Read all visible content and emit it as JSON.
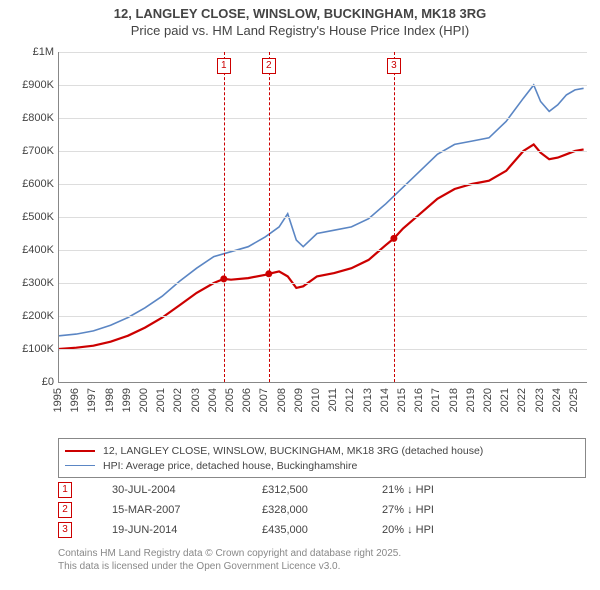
{
  "title": {
    "line1": "12, LANGLEY CLOSE, WINSLOW, BUCKINGHAM, MK18 3RG",
    "line2": "Price paid vs. HM Land Registry's House Price Index (HPI)"
  },
  "chart": {
    "type": "line",
    "background_color": "#ffffff",
    "grid_color": "#dddddd",
    "axis_color": "#888888",
    "label_color": "#444444",
    "label_fontsize": 11,
    "title_fontsize": 13,
    "x": {
      "min": 1995,
      "max": 2025.7,
      "ticks": [
        1995,
        1996,
        1997,
        1998,
        1999,
        2000,
        2001,
        2002,
        2003,
        2004,
        2005,
        2006,
        2007,
        2008,
        2009,
        2010,
        2011,
        2012,
        2013,
        2014,
        2015,
        2016,
        2017,
        2018,
        2019,
        2020,
        2021,
        2022,
        2023,
        2024,
        2025
      ]
    },
    "y": {
      "min": 0,
      "max": 1000000,
      "ticks": [
        {
          "v": 0,
          "label": "£0"
        },
        {
          "v": 100000,
          "label": "£100K"
        },
        {
          "v": 200000,
          "label": "£200K"
        },
        {
          "v": 300000,
          "label": "£300K"
        },
        {
          "v": 400000,
          "label": "£400K"
        },
        {
          "v": 500000,
          "label": "£500K"
        },
        {
          "v": 600000,
          "label": "£600K"
        },
        {
          "v": 700000,
          "label": "£700K"
        },
        {
          "v": 800000,
          "label": "£800K"
        },
        {
          "v": 900000,
          "label": "£900K"
        },
        {
          "v": 1000000,
          "label": "£1M"
        }
      ]
    },
    "vlines": [
      {
        "x": 2004.58,
        "color": "#cc0000",
        "label": "1"
      },
      {
        "x": 2007.2,
        "color": "#cc0000",
        "label": "2"
      },
      {
        "x": 2014.47,
        "color": "#cc0000",
        "label": "3"
      }
    ],
    "series": [
      {
        "name": "property",
        "color": "#cc0000",
        "width": 2.2,
        "data": [
          [
            1995.0,
            100000
          ],
          [
            1996.0,
            104000
          ],
          [
            1997.0,
            110000
          ],
          [
            1998.0,
            122000
          ],
          [
            1999.0,
            140000
          ],
          [
            2000.0,
            165000
          ],
          [
            2001.0,
            195000
          ],
          [
            2002.0,
            232000
          ],
          [
            2003.0,
            270000
          ],
          [
            2004.0,
            300000
          ],
          [
            2004.58,
            312500
          ],
          [
            2005.0,
            310000
          ],
          [
            2006.0,
            315000
          ],
          [
            2007.0,
            325000
          ],
          [
            2007.2,
            328000
          ],
          [
            2007.8,
            335000
          ],
          [
            2008.3,
            320000
          ],
          [
            2008.8,
            285000
          ],
          [
            2009.2,
            290000
          ],
          [
            2010.0,
            320000
          ],
          [
            2011.0,
            330000
          ],
          [
            2012.0,
            345000
          ],
          [
            2013.0,
            370000
          ],
          [
            2014.0,
            415000
          ],
          [
            2014.47,
            435000
          ],
          [
            2015.0,
            465000
          ],
          [
            2016.0,
            510000
          ],
          [
            2017.0,
            555000
          ],
          [
            2018.0,
            585000
          ],
          [
            2019.0,
            600000
          ],
          [
            2020.0,
            610000
          ],
          [
            2021.0,
            640000
          ],
          [
            2022.0,
            700000
          ],
          [
            2022.6,
            720000
          ],
          [
            2023.0,
            695000
          ],
          [
            2023.5,
            675000
          ],
          [
            2024.0,
            680000
          ],
          [
            2024.5,
            690000
          ],
          [
            2025.0,
            700000
          ],
          [
            2025.5,
            705000
          ]
        ]
      },
      {
        "name": "hpi",
        "color": "#5b86c4",
        "width": 1.6,
        "data": [
          [
            1995.0,
            140000
          ],
          [
            1996.0,
            145000
          ],
          [
            1997.0,
            155000
          ],
          [
            1998.0,
            172000
          ],
          [
            1999.0,
            195000
          ],
          [
            2000.0,
            225000
          ],
          [
            2001.0,
            260000
          ],
          [
            2002.0,
            305000
          ],
          [
            2003.0,
            345000
          ],
          [
            2004.0,
            380000
          ],
          [
            2005.0,
            395000
          ],
          [
            2006.0,
            410000
          ],
          [
            2007.0,
            440000
          ],
          [
            2007.8,
            470000
          ],
          [
            2008.3,
            510000
          ],
          [
            2008.8,
            430000
          ],
          [
            2009.2,
            410000
          ],
          [
            2010.0,
            450000
          ],
          [
            2011.0,
            460000
          ],
          [
            2012.0,
            470000
          ],
          [
            2013.0,
            495000
          ],
          [
            2014.0,
            540000
          ],
          [
            2015.0,
            590000
          ],
          [
            2016.0,
            640000
          ],
          [
            2017.0,
            690000
          ],
          [
            2018.0,
            720000
          ],
          [
            2019.0,
            730000
          ],
          [
            2020.0,
            740000
          ],
          [
            2021.0,
            790000
          ],
          [
            2022.0,
            860000
          ],
          [
            2022.6,
            900000
          ],
          [
            2023.0,
            850000
          ],
          [
            2023.5,
            820000
          ],
          [
            2024.0,
            840000
          ],
          [
            2024.5,
            870000
          ],
          [
            2025.0,
            885000
          ],
          [
            2025.5,
            890000
          ]
        ]
      }
    ],
    "sale_points": [
      {
        "x": 2004.58,
        "y": 312500,
        "color": "#cc0000"
      },
      {
        "x": 2007.2,
        "y": 328000,
        "color": "#cc0000"
      },
      {
        "x": 2014.47,
        "y": 435000,
        "color": "#cc0000"
      }
    ]
  },
  "legend": {
    "items": [
      {
        "color": "#cc0000",
        "width": 2.2,
        "label": "12, LANGLEY CLOSE, WINSLOW, BUCKINGHAM, MK18 3RG (detached house)"
      },
      {
        "color": "#5b86c4",
        "width": 1.6,
        "label": "HPI: Average price, detached house, Buckinghamshire"
      }
    ]
  },
  "sales": [
    {
      "num": "1",
      "date": "30-JUL-2004",
      "price": "£312,500",
      "delta": "21% ↓ HPI"
    },
    {
      "num": "2",
      "date": "15-MAR-2007",
      "price": "£328,000",
      "delta": "27% ↓ HPI"
    },
    {
      "num": "3",
      "date": "19-JUN-2014",
      "price": "£435,000",
      "delta": "20% ↓ HPI"
    }
  ],
  "footer": {
    "line1": "Contains HM Land Registry data © Crown copyright and database right 2025.",
    "line2": "This data is licensed under the Open Government Licence v3.0."
  }
}
